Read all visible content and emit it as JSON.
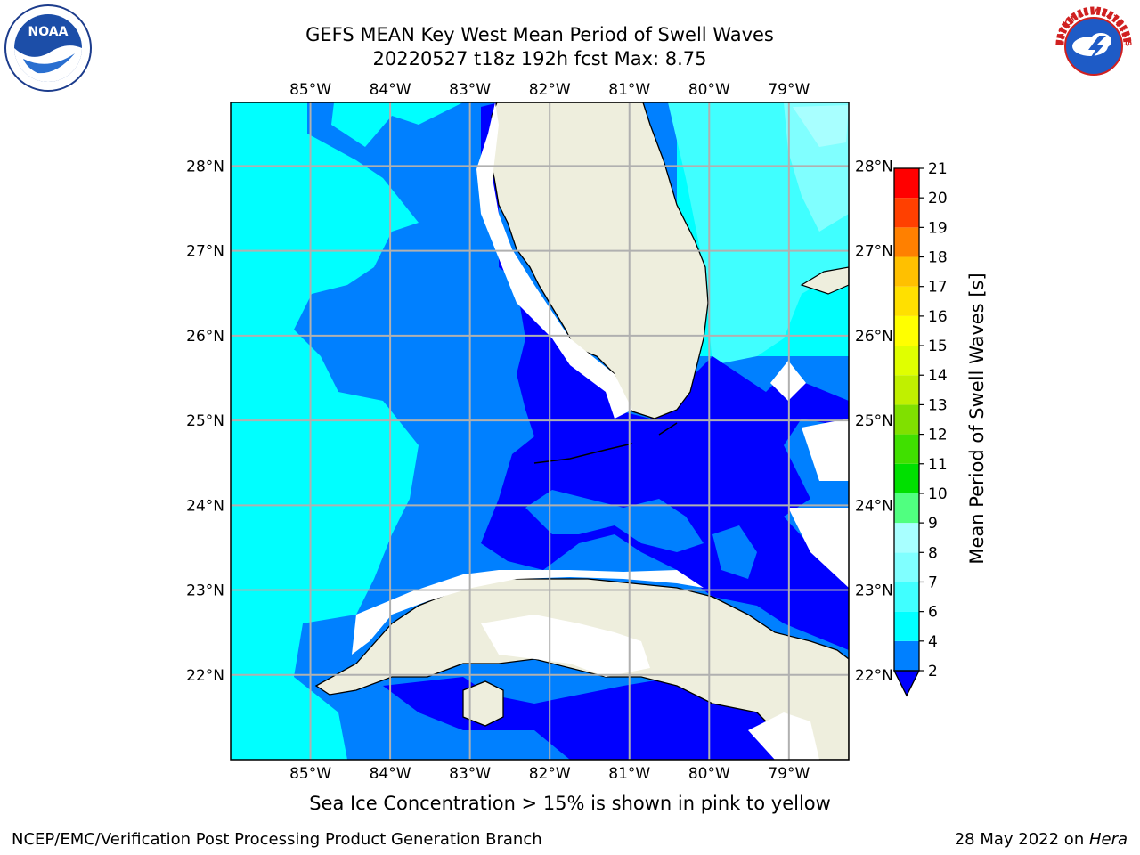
{
  "title": {
    "line1": "GEFS MEAN Key West Mean Period of Swell Waves",
    "line2": "20220527 t18z 192h fcst   Max: 8.75"
  },
  "map": {
    "lon_labels": [
      "85°W",
      "84°W",
      "83°W",
      "82°W",
      "81°W",
      "80°W",
      "79°W"
    ],
    "lat_labels": [
      "28°N",
      "27°N",
      "26°N",
      "25°N",
      "24°N",
      "23°N",
      "22°N"
    ],
    "extent": {
      "lon_min": -86.0,
      "lon_max": -78.25,
      "lat_min": 21.0,
      "lat_max": 28.75
    }
  },
  "colorbar": {
    "label": "Mean Period of Swell Waves [s]",
    "ticks": [
      "2",
      "4",
      "6",
      "7",
      "8",
      "9",
      "10",
      "11",
      "12",
      "13",
      "14",
      "15",
      "16",
      "17",
      "18",
      "19",
      "20",
      "21"
    ],
    "colors": [
      "#0000ff",
      "#0080ff",
      "#00ffff",
      "#40ffff",
      "#80ffff",
      "#a8ffff",
      "#50ff80",
      "#00e000",
      "#40e000",
      "#80e000",
      "#c0f000",
      "#e0ff00",
      "#ffff00",
      "#ffe000",
      "#ffc000",
      "#ff8000",
      "#ff4000",
      "#ff0000"
    ]
  },
  "colors": {
    "land": "#eeeedd",
    "grid": "#b0b0b0"
  },
  "footer": {
    "note": "Sea Ice Concentration > 15% is shown in pink to yellow",
    "left": "NCEP/EMC/Verification Post Processing Product Generation Branch",
    "right_prefix": "28 May 2022 on ",
    "right_host": "Hera"
  },
  "logos": {
    "noaa_text": "NOAA",
    "nws_text": "NATIONAL WEATHER SERVICE"
  }
}
